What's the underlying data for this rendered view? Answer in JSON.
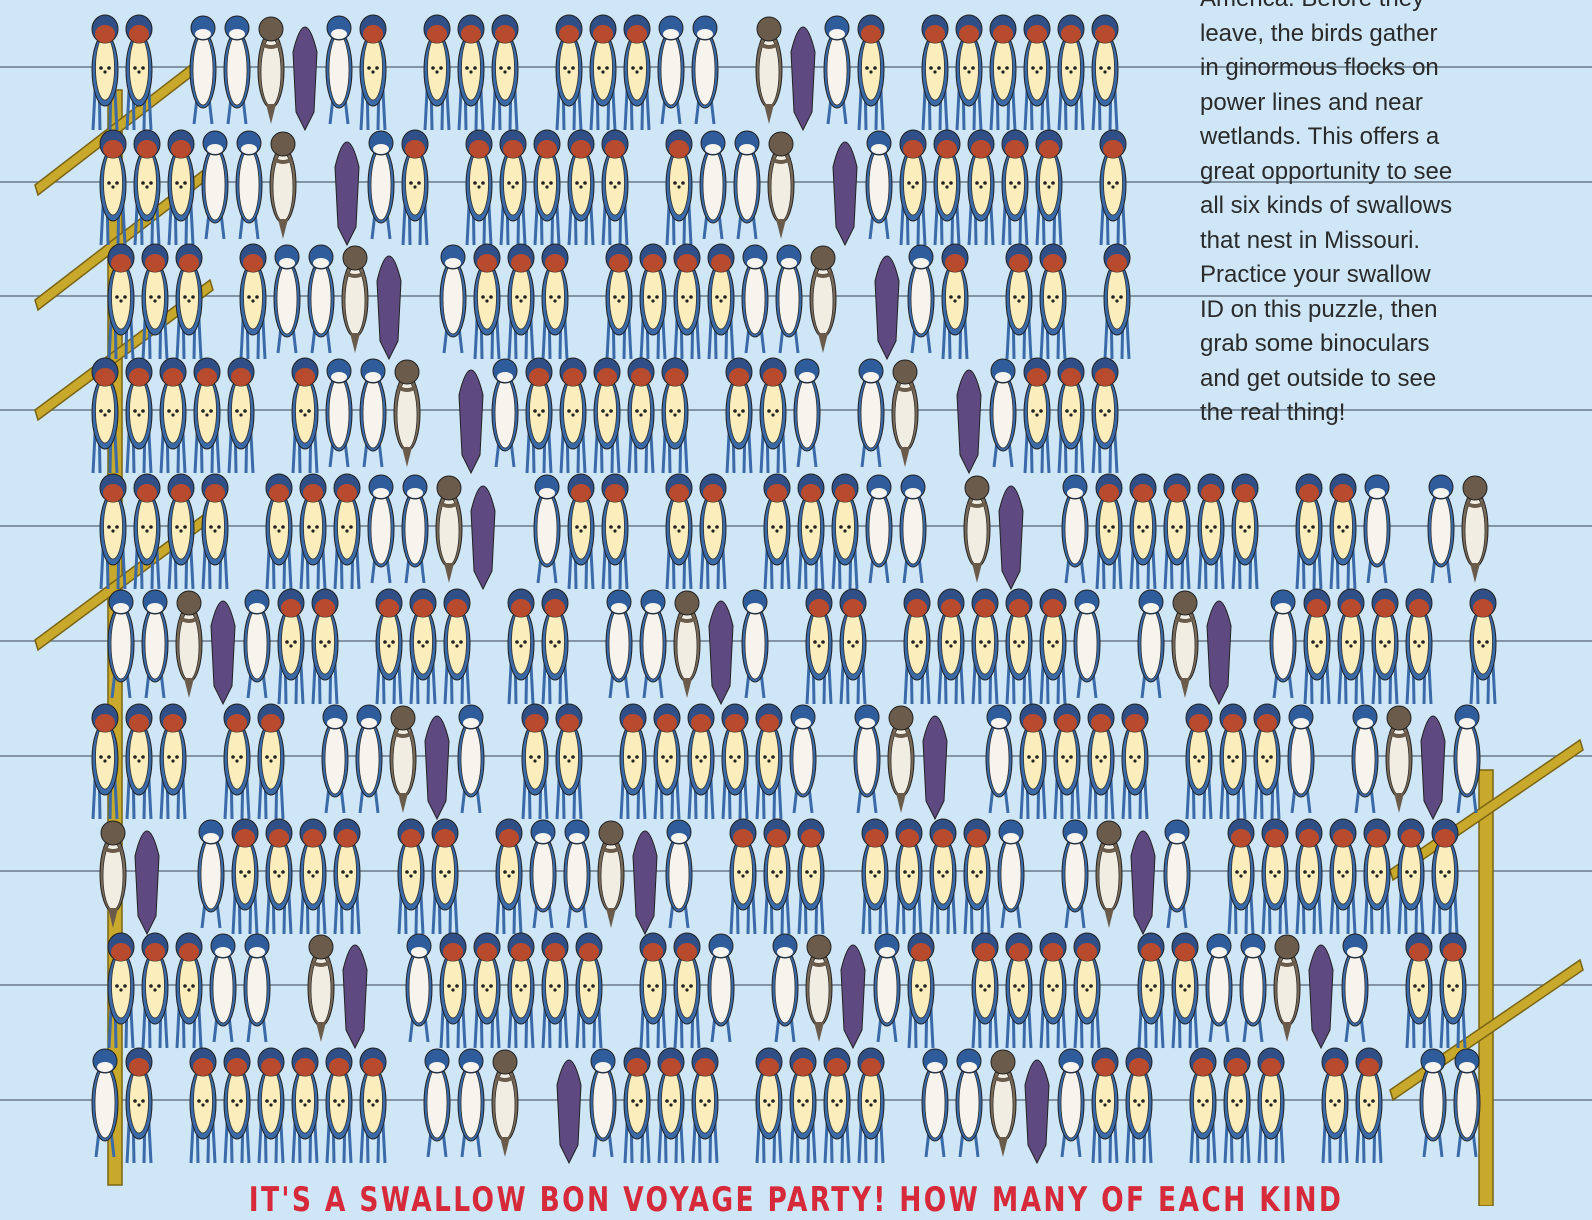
{
  "intro": {
    "lines": [
      "America. Before they",
      "leave, the birds gather",
      "in ginormous flocks on",
      "power lines and near",
      "wetlands. This offers a",
      "great opportunity to see",
      "all six kinds of swallows",
      "that nest in Missouri.",
      "Practice your swallow",
      "ID on this puzzle, then",
      "grab some binoculars",
      "and get outside to see",
      "the real thing!"
    ]
  },
  "caption": "IT'S A SWALLOW BON VOYAGE PARTY! HOW MANY OF EACH KIND"
}
